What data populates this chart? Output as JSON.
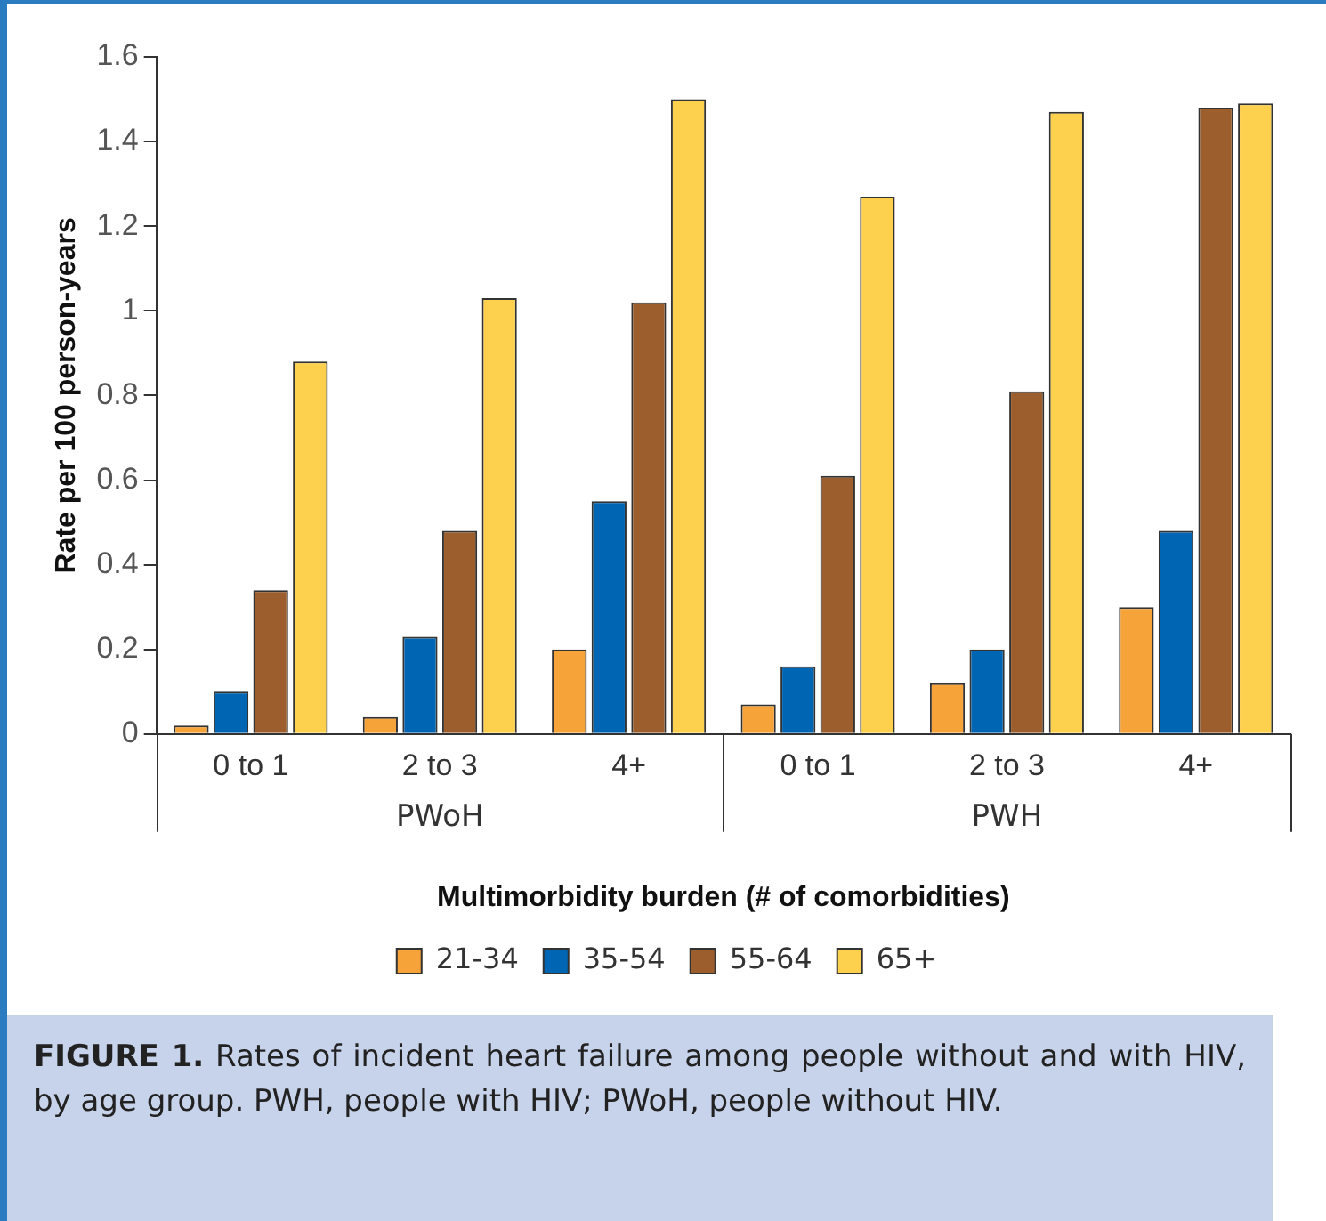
{
  "chart_data": {
    "type": "bar",
    "xlabel": "Multimorbidity burden (# of comorbidities)",
    "ylabel": "Rate per 100 person-years",
    "categories": [
      "0 to 1",
      "2 to 3",
      "4+",
      "0 to 1",
      "2 to 3",
      "4+"
    ],
    "series": [
      {
        "name": "21-34",
        "color": "#f6a33a",
        "values": [
          0.02,
          0.04,
          0.2,
          0.07,
          0.12,
          0.3
        ]
      },
      {
        "name": "35-54",
        "color": "#0066b3",
        "values": [
          0.1,
          0.23,
          0.55,
          0.16,
          0.2,
          0.48
        ]
      },
      {
        "name": "55-64",
        "color": "#9c5e2c",
        "values": [
          0.34,
          0.48,
          1.02,
          0.61,
          0.81,
          1.48
        ]
      },
      {
        "name": "65+",
        "color": "#fdd04e",
        "values": [
          0.88,
          1.03,
          1.5,
          1.27,
          1.47,
          1.49
        ]
      }
    ],
    "ylim": [
      0,
      1.6
    ],
    "yticks": [
      0,
      0.2,
      0.4,
      0.6,
      0.8,
      1,
      1.2,
      1.4,
      1.6
    ],
    "grid": false,
    "legend": "bottom",
    "annotations": [
      "PWoH",
      "PWH",
      "FIGURE 1. Rates of incident heart failure among people without and with HIV, by age group. PWH, people with HIV; PWoH, people without HIV."
    ]
  }
}
